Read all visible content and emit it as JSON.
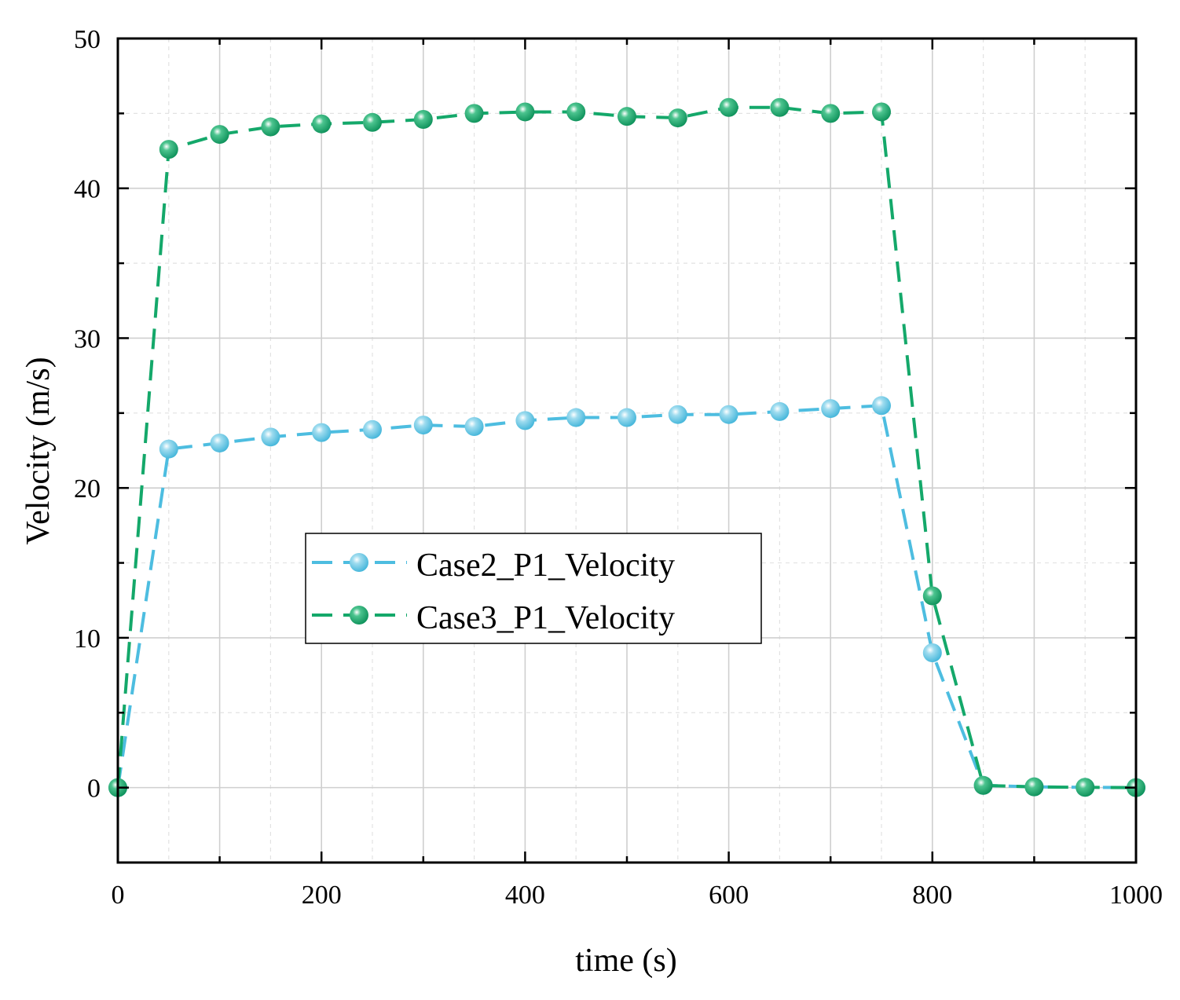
{
  "chart_data": {
    "type": "line",
    "title": "",
    "xlabel": "time (s)",
    "ylabel": "Velocity (m/s)",
    "xlim": [
      0,
      1000
    ],
    "ylim": [
      -5,
      50
    ],
    "xticks": [
      0,
      200,
      400,
      600,
      800,
      1000
    ],
    "yticks": [
      0,
      10,
      20,
      30,
      40,
      50
    ],
    "xtick_labels": [
      "0",
      "200",
      "400",
      "600",
      "800",
      "1000"
    ],
    "ytick_labels": [
      "0",
      "10",
      "20",
      "30",
      "40",
      "50"
    ],
    "grid": true,
    "legend_position": "center-left",
    "x": [
      0,
      50,
      100,
      150,
      200,
      250,
      300,
      350,
      400,
      450,
      500,
      550,
      600,
      650,
      700,
      750,
      800,
      850,
      900,
      950,
      1000
    ],
    "series": [
      {
        "name": "Case2_P1_Velocity",
        "color": "#4dbde0",
        "values": [
          0,
          22.6,
          23.0,
          23.4,
          23.7,
          23.9,
          24.2,
          24.1,
          24.5,
          24.7,
          24.7,
          24.9,
          24.9,
          25.1,
          25.3,
          25.5,
          9.0,
          0.15,
          0.05,
          0.02,
          0.0
        ]
      },
      {
        "name": "Case3_P1_Velocity",
        "color": "#14a86a",
        "values": [
          0,
          42.6,
          43.6,
          44.1,
          44.3,
          44.4,
          44.6,
          45.0,
          45.1,
          45.1,
          44.8,
          44.7,
          45.4,
          45.4,
          45.0,
          45.1,
          12.8,
          0.15,
          0.05,
          0.02,
          0.0
        ]
      }
    ]
  }
}
